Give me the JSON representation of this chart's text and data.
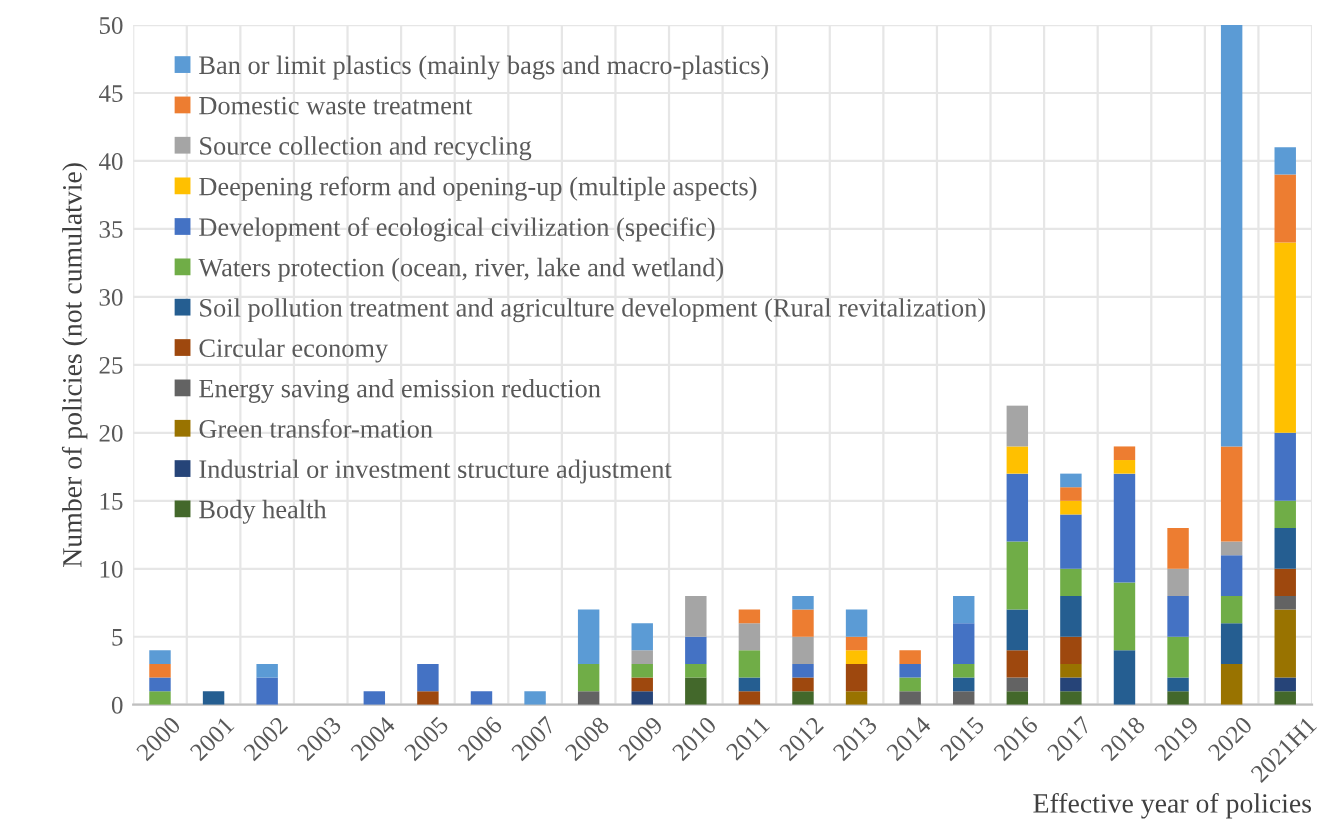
{
  "chart_data": {
    "type": "bar",
    "stacked": true,
    "ylabel": "Number of policies (not cumulatvie)",
    "xlabel": "Effective year of policies",
    "categories": [
      "2000",
      "2001",
      "2002",
      "2003",
      "2004",
      "2005",
      "2006",
      "2007",
      "2008",
      "2009",
      "2010",
      "2011",
      "2012",
      "2013",
      "2014",
      "2015",
      "2016",
      "2017",
      "2018",
      "2019",
      "2020",
      "2021H1"
    ],
    "ylim": [
      0,
      50
    ],
    "yticks": [
      0,
      5,
      10,
      15,
      20,
      25,
      30,
      35,
      40,
      45,
      50
    ],
    "grid": true,
    "legend": "top left",
    "series": [
      {
        "name": "Body health",
        "color": "#43682b",
        "values": [
          0,
          0,
          0,
          0,
          0,
          0,
          0,
          0,
          0,
          0,
          2,
          0,
          1,
          0,
          0,
          0,
          1,
          1,
          0,
          1,
          0,
          1
        ]
      },
      {
        "name": "Industrial or investment structure adjustment",
        "color": "#264478",
        "values": [
          0,
          0,
          0,
          0,
          0,
          0,
          0,
          0,
          0,
          1,
          0,
          0,
          0,
          0,
          0,
          0,
          0,
          1,
          0,
          0,
          0,
          1
        ]
      },
      {
        "name": "Green transfor-mation",
        "color": "#997300",
        "values": [
          0,
          0,
          0,
          0,
          0,
          0,
          0,
          0,
          0,
          0,
          0,
          0,
          0,
          1,
          0,
          0,
          0,
          1,
          0,
          0,
          3,
          5
        ]
      },
      {
        "name": "Energy saving and emission reduction",
        "color": "#636363",
        "values": [
          0,
          0,
          0,
          0,
          0,
          0,
          0,
          0,
          1,
          0,
          0,
          0,
          0,
          0,
          1,
          1,
          1,
          0,
          0,
          0,
          0,
          1
        ]
      },
      {
        "name": "Circular economy",
        "color": "#9e480e",
        "values": [
          0,
          0,
          0,
          0,
          0,
          1,
          0,
          0,
          0,
          1,
          0,
          1,
          1,
          2,
          0,
          0,
          2,
          2,
          0,
          0,
          0,
          2
        ]
      },
      {
        "name": "Soil pollution treatment and agriculture development (Rural revitalization)",
        "color": "#255e91",
        "values": [
          0,
          1,
          0,
          0,
          0,
          0,
          0,
          0,
          0,
          0,
          0,
          1,
          0,
          0,
          0,
          1,
          3,
          3,
          4,
          1,
          3,
          3
        ]
      },
      {
        "name": "Waters protection (ocean, river, lake and wetland)",
        "color": "#70ad47",
        "values": [
          1,
          0,
          0,
          0,
          0,
          0,
          0,
          0,
          2,
          1,
          1,
          2,
          0,
          0,
          1,
          1,
          5,
          2,
          5,
          3,
          2,
          2
        ]
      },
      {
        "name": "Development of ecological civilization (specific)",
        "color": "#4472c4",
        "values": [
          1,
          0,
          2,
          0,
          1,
          2,
          1,
          0,
          0,
          0,
          2,
          0,
          1,
          0,
          1,
          3,
          5,
          4,
          8,
          3,
          3,
          5
        ]
      },
      {
        "name": "Deepening reform and opening-up (multiple aspects)",
        "color": "#ffc000",
        "values": [
          0,
          0,
          0,
          0,
          0,
          0,
          0,
          0,
          0,
          0,
          0,
          0,
          0,
          1,
          0,
          0,
          2,
          1,
          1,
          0,
          0,
          14
        ]
      },
      {
        "name": "Source collection and recycling",
        "color": "#a5a5a5",
        "values": [
          0,
          0,
          0,
          0,
          0,
          0,
          0,
          0,
          0,
          1,
          3,
          2,
          2,
          0,
          0,
          0,
          3,
          0,
          0,
          2,
          1,
          0
        ]
      },
      {
        "name": "Domestic waste treatment",
        "color": "#ed7d31",
        "values": [
          1,
          0,
          0,
          0,
          0,
          0,
          0,
          0,
          0,
          0,
          0,
          1,
          2,
          1,
          1,
          0,
          0,
          1,
          1,
          3,
          7,
          5
        ]
      },
      {
        "name": "Ban or limit plastics (mainly bags and macro-plastics)",
        "color": "#5b9bd5",
        "values": [
          1,
          0,
          1,
          0,
          0,
          0,
          0,
          1,
          4,
          2,
          0,
          0,
          1,
          2,
          0,
          2,
          0,
          1,
          0,
          0,
          31,
          2
        ]
      }
    ]
  }
}
